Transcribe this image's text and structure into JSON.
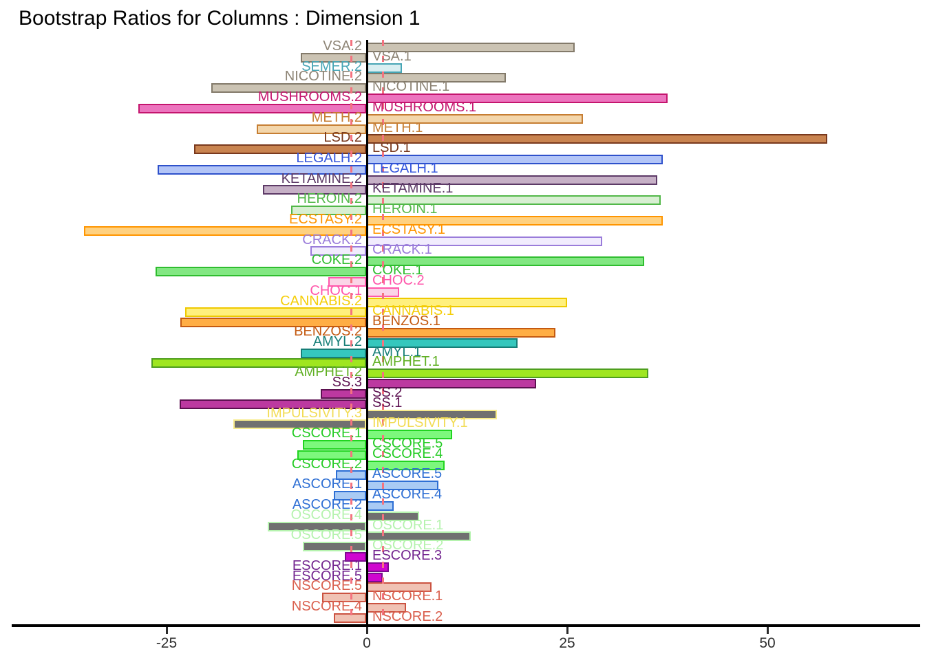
{
  "chart_data": {
    "type": "bar",
    "orientation": "horizontal",
    "title": "Bootstrap Ratios for Columns : Dimension 1",
    "xlabel": "",
    "ylabel": "",
    "x_ticks": [
      -25,
      0,
      25,
      50
    ],
    "xlim": [
      -45.8,
      69.7
    ],
    "grid": false,
    "legend": "none",
    "threshold_lines": [
      -2,
      2
    ],
    "threshold_line_color": "#f4737f",
    "zero_line_color": "#000000",
    "groups": {
      "VSA": {
        "fill": "#cbc3b3",
        "border": "#837a6a",
        "text": "#8d8475"
      },
      "SEMER": {
        "fill": "#d9eef1",
        "border": "#46a5b5",
        "text": "#46a5b5"
      },
      "NICOTINE": {
        "fill": "#cbc3b3",
        "border": "#837a6a",
        "text": "#8d8475"
      },
      "MUSHROOMS": {
        "fill": "#ec74be",
        "border": "#c4156e",
        "text": "#c4156e"
      },
      "METH": {
        "fill": "#f3d6ab",
        "border": "#c67e33",
        "text": "#c67e33"
      },
      "LSD": {
        "fill": "#c98450",
        "border": "#79391d",
        "text": "#79391d"
      },
      "LEGALH": {
        "fill": "#b3c5f7",
        "border": "#2e51cb",
        "text": "#3355dd"
      },
      "KETAMINE": {
        "fill": "#c6b0c6",
        "border": "#5d3a67",
        "text": "#5d3a67"
      },
      "HEROIN": {
        "fill": "#d8efd2",
        "border": "#52b849",
        "text": "#52b849"
      },
      "ECSTASY": {
        "fill": "#ffd180",
        "border": "#ff9500",
        "text": "#ff9500"
      },
      "CRACK": {
        "fill": "#f1ecfd",
        "border": "#9a7cda",
        "text": "#9a7cda"
      },
      "COKE": {
        "fill": "#82e782",
        "border": "#2fbd2f",
        "text": "#2fbd2f"
      },
      "CHOC": {
        "fill": "#fbd4e7",
        "border": "#ff57ab",
        "text": "#ff57ab"
      },
      "CANNABIS": {
        "fill": "#fff07e",
        "border": "#eec900",
        "text": "#f5ce0a"
      },
      "BENZOS": {
        "fill": "#ffae45",
        "border": "#c45a11",
        "text": "#c45a11"
      },
      "AMYL": {
        "fill": "#35c7bd",
        "border": "#167e77",
        "text": "#167e77"
      },
      "AMPHET": {
        "fill": "#9fe620",
        "border": "#4e9e1e",
        "text": "#61b025"
      },
      "SS": {
        "fill": "#bc39a0",
        "border": "#5c1050",
        "text": "#5c1050"
      },
      "IMPULSIVITY": {
        "fill": "#707070",
        "border": "#f8ec8c",
        "text": "#f2dc55"
      },
      "CSCORE": {
        "fill": "#7df87d",
        "border": "#21d421",
        "text": "#26cc26"
      },
      "ASCORE": {
        "fill": "#a9cbf4",
        "border": "#2e6fd4",
        "text": "#2e6fd4"
      },
      "OSCORE": {
        "fill": "#707070",
        "border": "#b5f3ae",
        "text": "#b5f3ae"
      },
      "ESCORE": {
        "fill": "#cf06cf",
        "border": "#7a0c8e",
        "text": "#73258f"
      },
      "NSCORE": {
        "fill": "#f0c2b4",
        "border": "#cb5341",
        "text": "#da604e"
      }
    },
    "rows": [
      {
        "label": "VSA.2",
        "group": "VSA",
        "value": 26.0
      },
      {
        "label": "VSA.1",
        "group": "VSA",
        "value": -8.2
      },
      {
        "label": "SEMER.2",
        "group": "SEMER",
        "value": 4.5
      },
      {
        "label": "NICOTINE.2",
        "group": "NICOTINE",
        "value": 17.4
      },
      {
        "label": "NICOTINE.1",
        "group": "NICOTINE",
        "value": -19.3
      },
      {
        "label": "MUSHROOMS.2",
        "group": "MUSHROOMS",
        "value": 37.6
      },
      {
        "label": "MUSHROOMS.1",
        "group": "MUSHROOMS",
        "value": -28.4
      },
      {
        "label": "METH.2",
        "group": "METH",
        "value": 27.1
      },
      {
        "label": "METH.1",
        "group": "METH",
        "value": -13.7
      },
      {
        "label": "LSD.2",
        "group": "LSD",
        "value": 57.6
      },
      {
        "label": "LSD.1",
        "group": "LSD",
        "value": -21.5
      },
      {
        "label": "LEGALH.2",
        "group": "LEGALH",
        "value": 37.0
      },
      {
        "label": "LEGALH.1",
        "group": "LEGALH",
        "value": -26.0
      },
      {
        "label": "KETAMINE.2",
        "group": "KETAMINE",
        "value": 36.3
      },
      {
        "label": "KETAMINE.1",
        "group": "KETAMINE",
        "value": -12.9
      },
      {
        "label": "HEROIN.2",
        "group": "HEROIN",
        "value": 36.8
      },
      {
        "label": "HEROIN.1",
        "group": "HEROIN",
        "value": -9.4
      },
      {
        "label": "ECSTASY.2",
        "group": "ECSTASY",
        "value": 37.0
      },
      {
        "label": "ECSTASY.1",
        "group": "ECSTASY",
        "value": -35.2
      },
      {
        "label": "CRACK.2",
        "group": "CRACK",
        "value": 29.5
      },
      {
        "label": "CRACK.1",
        "group": "CRACK",
        "value": -7.0
      },
      {
        "label": "COKE.2",
        "group": "COKE",
        "value": 34.7
      },
      {
        "label": "COKE.1",
        "group": "COKE",
        "value": -26.3
      },
      {
        "label": "CHOC.2",
        "group": "CHOC",
        "value": -4.7
      },
      {
        "label": "CHOC.1",
        "group": "CHOC",
        "value": 4.1
      },
      {
        "label": "CANNABIS.2",
        "group": "CANNABIS",
        "value": 25.1
      },
      {
        "label": "CANNABIS.1",
        "group": "CANNABIS",
        "value": -22.6
      },
      {
        "label": "BENZOS.1",
        "group": "BENZOS",
        "value": -23.2
      },
      {
        "label": "BENZOS.2",
        "group": "BENZOS",
        "value": 23.6
      },
      {
        "label": "AMYL.2",
        "group": "AMYL",
        "value": 18.9
      },
      {
        "label": "AMYL.1",
        "group": "AMYL",
        "value": -8.2
      },
      {
        "label": "AMPHET.1",
        "group": "AMPHET",
        "value": -26.8
      },
      {
        "label": "AMPHET.2",
        "group": "AMPHET",
        "value": 35.2
      },
      {
        "label": "SS.3",
        "group": "SS",
        "value": 21.2
      },
      {
        "label": "SS.2",
        "group": "SS",
        "value": -5.7
      },
      {
        "label": "SS.1",
        "group": "SS",
        "value": -23.3
      },
      {
        "label": "IMPULSIVITY.3",
        "group": "IMPULSIVITY",
        "value": 16.3
      },
      {
        "label": "IMPULSIVITY.1",
        "group": "IMPULSIVITY",
        "value": -16.6
      },
      {
        "label": "CSCORE.1",
        "group": "CSCORE",
        "value": 10.7
      },
      {
        "label": "CSCORE.5",
        "group": "CSCORE",
        "value": -7.9
      },
      {
        "label": "CSCORE.4",
        "group": "CSCORE",
        "value": -8.6
      },
      {
        "label": "CSCORE.2",
        "group": "CSCORE",
        "value": 9.8
      },
      {
        "label": "ASCORE.5",
        "group": "ASCORE",
        "value": -3.8
      },
      {
        "label": "ASCORE.1",
        "group": "ASCORE",
        "value": 9.0
      },
      {
        "label": "ASCORE.4",
        "group": "ASCORE",
        "value": -4.0
      },
      {
        "label": "ASCORE.2",
        "group": "ASCORE",
        "value": 3.4
      },
      {
        "label": "OSCORE.4",
        "group": "OSCORE",
        "value": 6.6
      },
      {
        "label": "OSCORE.1",
        "group": "OSCORE",
        "value": -12.3
      },
      {
        "label": "OSCORE.5",
        "group": "OSCORE",
        "value": 13.1
      },
      {
        "label": "OSCORE.2",
        "group": "OSCORE",
        "value": -7.9
      },
      {
        "label": "ESCORE.3",
        "group": "ESCORE",
        "value": -2.7
      },
      {
        "label": "ESCORE.1",
        "group": "ESCORE",
        "value": 2.8
      },
      {
        "label": "ESCORE.5",
        "group": "ESCORE",
        "value": 2.1
      },
      {
        "label": "NSCORE.5",
        "group": "NSCORE",
        "value": 8.2
      },
      {
        "label": "NSCORE.1",
        "group": "NSCORE",
        "value": -5.5
      },
      {
        "label": "NSCORE.4",
        "group": "NSCORE",
        "value": 5.0
      },
      {
        "label": "NSCORE.2",
        "group": "NSCORE",
        "value": -4.0
      }
    ]
  }
}
